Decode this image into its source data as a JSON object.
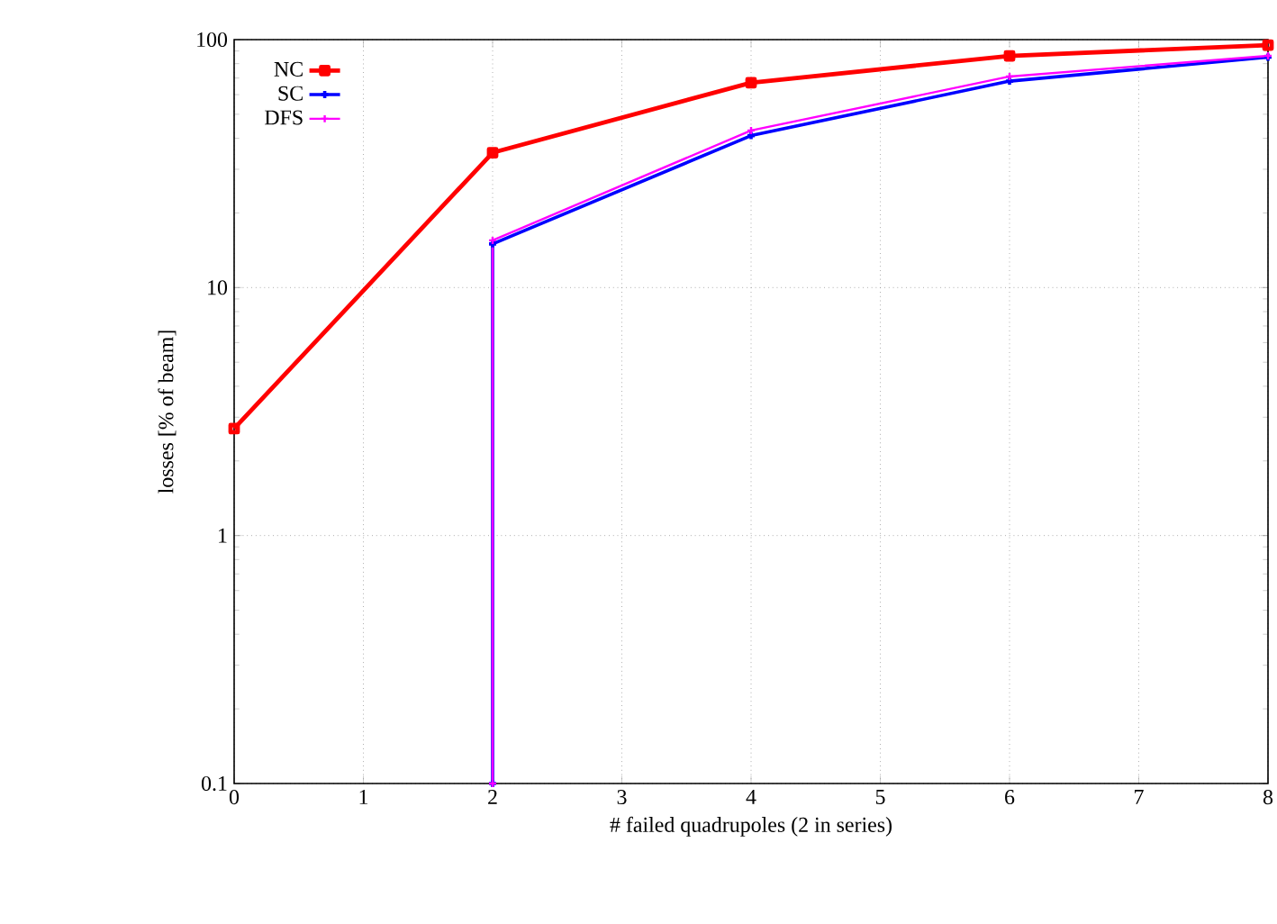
{
  "chart_data": {
    "type": "line",
    "xlabel": "# failed quadrupoles (2 in series)",
    "ylabel": "losses [% of beam]",
    "log": "y",
    "xlim": [
      0,
      8
    ],
    "ylim": [
      0.1,
      100
    ],
    "xticks": [
      0,
      1,
      2,
      3,
      4,
      5,
      6,
      7,
      8
    ],
    "yticks": [
      0.1,
      1,
      10,
      100
    ],
    "grid": true,
    "legend": "top left",
    "line_style": "solid",
    "series": [
      {
        "name": "NC",
        "color": "#ff0000",
        "marker": "square",
        "x": [
          0,
          2,
          4,
          6,
          8
        ],
        "values": [
          2.7,
          35,
          67,
          86,
          95
        ]
      },
      {
        "name": "SC",
        "color": "#0000ff",
        "marker": "cross",
        "x": [
          2,
          2,
          4,
          6,
          8
        ],
        "values": [
          0.1,
          15,
          41,
          68,
          85
        ]
      },
      {
        "name": "DFS",
        "color": "#ff00ff",
        "marker": "cross",
        "x": [
          2,
          2,
          4,
          6,
          8
        ],
        "values": [
          0.1,
          15.5,
          43,
          71,
          86
        ]
      }
    ]
  }
}
